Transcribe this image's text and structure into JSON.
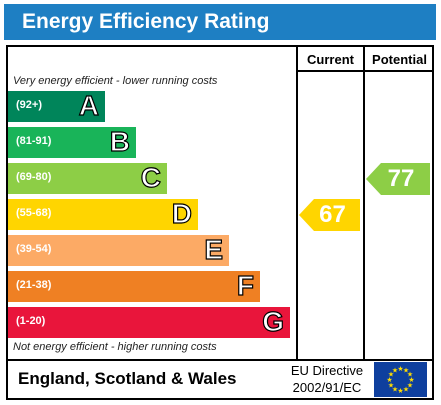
{
  "header": {
    "title": "Energy Efficiency Rating"
  },
  "columns": {
    "current": "Current",
    "potential": "Potential"
  },
  "notes": {
    "top": "Very energy efficient - lower running costs",
    "bottom": "Not energy efficient - higher running costs"
  },
  "chart_data": {
    "type": "bar",
    "categories": [
      "A",
      "B",
      "C",
      "D",
      "E",
      "F",
      "G"
    ],
    "ranges": [
      "(92+)",
      "(81-91)",
      "(69-80)",
      "(55-68)",
      "(39-54)",
      "(21-38)",
      "(1-20)"
    ],
    "colors": [
      "#00855a",
      "#19b459",
      "#8dce46",
      "#ffd500",
      "#fcaa65",
      "#ef8023",
      "#e9153b"
    ],
    "current": {
      "value": 67,
      "band": "D",
      "color": "#ffd500"
    },
    "potential": {
      "value": 77,
      "band": "C",
      "color": "#8dce46"
    }
  },
  "footer": {
    "region": "England, Scotland & Wales",
    "directive_line1": "EU Directive",
    "directive_line2": "2002/91/EC"
  },
  "icons": {
    "flag": "eu-flag-icon"
  }
}
